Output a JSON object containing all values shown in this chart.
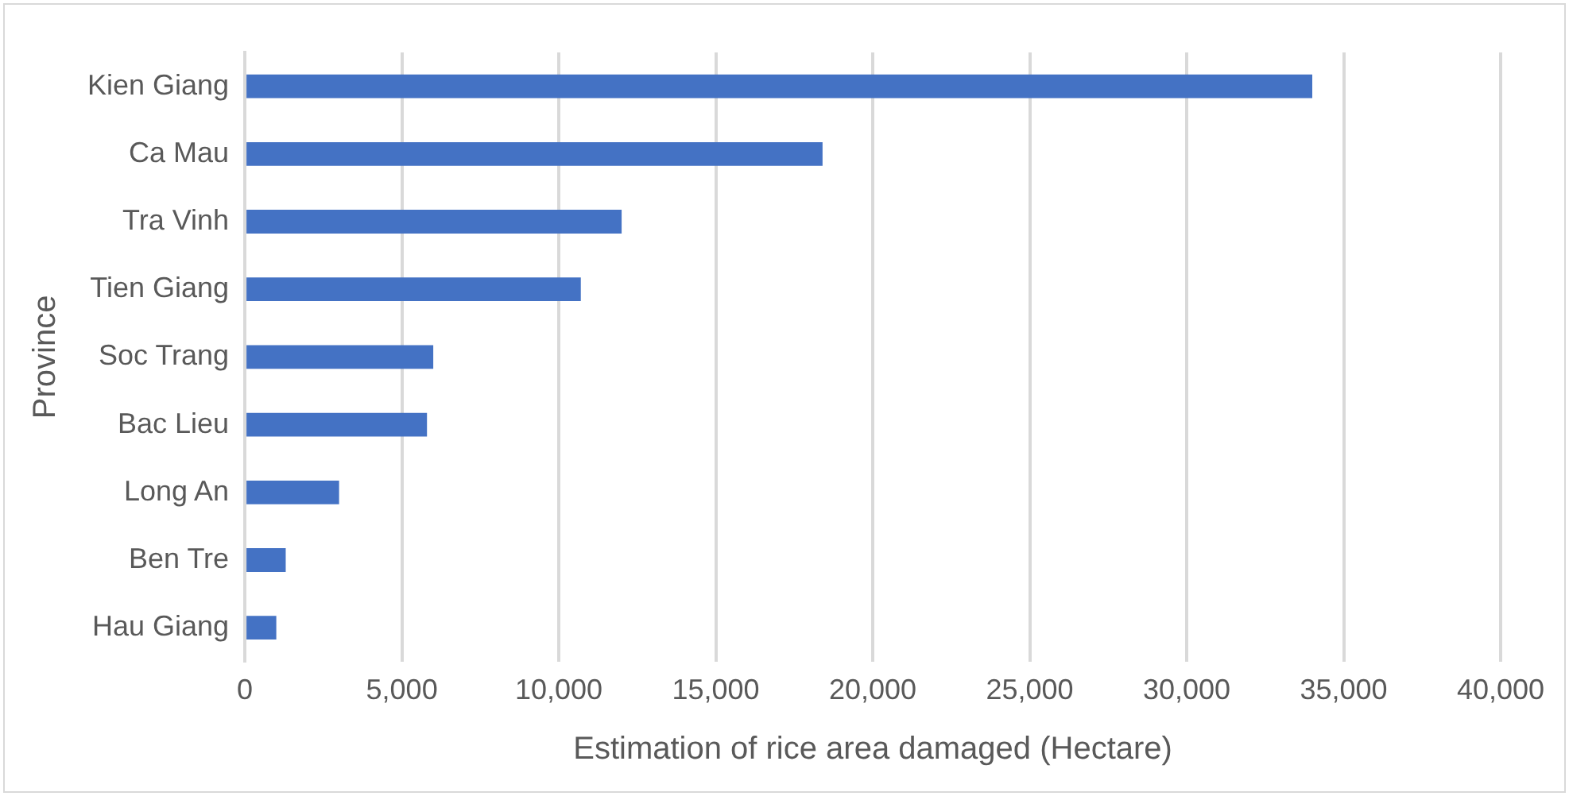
{
  "chart_data": {
    "type": "bar",
    "orientation": "horizontal",
    "xlabel": "Estimation of rice area damaged (Hectare)",
    "ylabel": "Province",
    "categories": [
      "Kien Giang",
      "Ca Mau",
      "Tra Vinh",
      "Tien Giang",
      "Soc Trang",
      "Bac Lieu",
      "Long An",
      "Ben Tre",
      "Hau Giang"
    ],
    "values": [
      34000,
      18400,
      12000,
      10700,
      6000,
      5800,
      3000,
      1300,
      1000
    ],
    "color": "#4472c4",
    "xlim": [
      0,
      40000
    ],
    "xticks": [
      0,
      {
        "value": 5000,
        "label": "5,000"
      },
      {
        "value": 10000,
        "label": "10,000"
      },
      {
        "value": 15000,
        "label": "15,000"
      },
      {
        "value": 20000,
        "label": "20,000"
      },
      {
        "value": 25000,
        "label": "25,000"
      },
      {
        "value": 30000,
        "label": "30,000"
      },
      {
        "value": 35000,
        "label": "35,000"
      },
      {
        "value": 40000,
        "label": "40,000"
      }
    ],
    "grid": "x",
    "legend": false
  }
}
